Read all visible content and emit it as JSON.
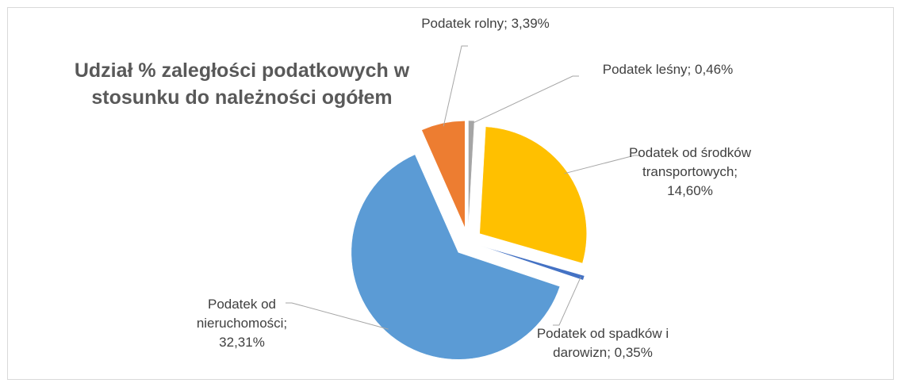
{
  "chart_data": {
    "type": "pie",
    "title": "Udział % zaległości podatkowych w stosunku do należności ogółem",
    "values": [
      3.39,
      0.46,
      14.6,
      0.35,
      32.31
    ],
    "value_labels": [
      "Podatek rolny; 3,39%",
      "Podatek leśny; 0,46%",
      "Podatek od środków transportowych; 14,60%",
      "Podatek od spadków i darowizn; 0,35%",
      "Podatek od nieruchomości; 32,31%"
    ],
    "colors": [
      "#ED7D31",
      "#A5A5A5",
      "#FFC000",
      "#4472C4",
      "#5B9BD5"
    ],
    "exploded": true
  }
}
